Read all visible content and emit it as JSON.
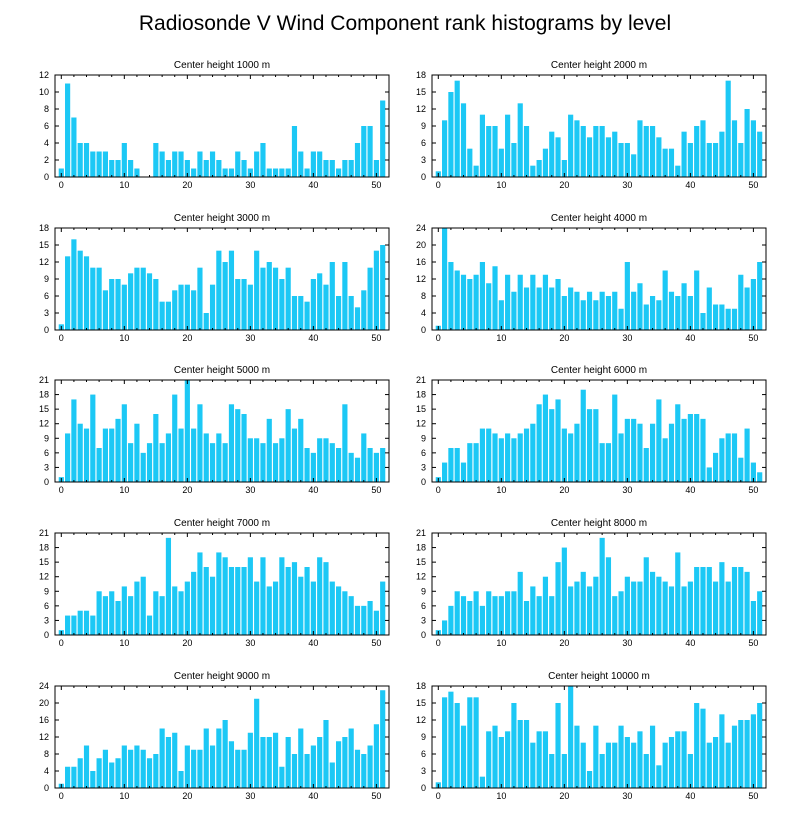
{
  "figure": {
    "title": "Radiosonde V Wind Component rank histograms by level",
    "bar_color": "#1CC8F5"
  },
  "chart_data": [
    {
      "type": "bar",
      "title": "Center height 1000 m",
      "x": [
        0,
        1,
        2,
        3,
        4,
        5,
        6,
        7,
        8,
        9,
        10,
        11,
        12,
        13,
        14,
        15,
        16,
        17,
        18,
        19,
        20,
        21,
        22,
        23,
        24,
        25,
        26,
        27,
        28,
        29,
        30,
        31,
        32,
        33,
        34,
        35,
        36,
        37,
        38,
        39,
        40,
        41,
        42,
        43,
        44,
        45,
        46,
        47,
        48,
        49,
        50,
        51
      ],
      "values": [
        1,
        11,
        7,
        4,
        4,
        3,
        3,
        3,
        2,
        2,
        4,
        2,
        1,
        0,
        0,
        4,
        3,
        2,
        3,
        3,
        2,
        1,
        3,
        2,
        3,
        2,
        1,
        1,
        3,
        2,
        1,
        3,
        4,
        1,
        1,
        1,
        1,
        6,
        3,
        1,
        3,
        3,
        2,
        2,
        1,
        2,
        2,
        4,
        6,
        6,
        2,
        9
      ],
      "xlim": [
        -1,
        52
      ],
      "ylim": [
        0,
        12
      ],
      "xticks": [
        0,
        10,
        20,
        30,
        40,
        50
      ],
      "yticks": [
        0,
        2,
        4,
        6,
        8,
        10,
        12
      ]
    },
    {
      "type": "bar",
      "title": "Center height 2000 m",
      "x": [
        0,
        1,
        2,
        3,
        4,
        5,
        6,
        7,
        8,
        9,
        10,
        11,
        12,
        13,
        14,
        15,
        16,
        17,
        18,
        19,
        20,
        21,
        22,
        23,
        24,
        25,
        26,
        27,
        28,
        29,
        30,
        31,
        32,
        33,
        34,
        35,
        36,
        37,
        38,
        39,
        40,
        41,
        42,
        43,
        44,
        45,
        46,
        47,
        48,
        49,
        50,
        51
      ],
      "values": [
        1,
        10,
        15,
        17,
        13,
        5,
        2,
        11,
        9,
        9,
        5,
        11,
        6,
        13,
        9,
        2,
        3,
        5,
        8,
        7,
        3,
        11,
        10,
        9,
        7,
        9,
        9,
        7,
        8,
        6,
        6,
        4,
        10,
        9,
        9,
        7,
        5,
        5,
        2,
        8,
        6,
        9,
        10,
        6,
        6,
        8,
        17,
        10,
        6,
        12,
        10,
        8
      ],
      "xlim": [
        -1,
        52
      ],
      "ylim": [
        0,
        18
      ],
      "xticks": [
        0,
        10,
        20,
        30,
        40,
        50
      ],
      "yticks": [
        0,
        3,
        6,
        9,
        12,
        15,
        18
      ]
    },
    {
      "type": "bar",
      "title": "Center height 3000 m",
      "x": [
        0,
        1,
        2,
        3,
        4,
        5,
        6,
        7,
        8,
        9,
        10,
        11,
        12,
        13,
        14,
        15,
        16,
        17,
        18,
        19,
        20,
        21,
        22,
        23,
        24,
        25,
        26,
        27,
        28,
        29,
        30,
        31,
        32,
        33,
        34,
        35,
        36,
        37,
        38,
        39,
        40,
        41,
        42,
        43,
        44,
        45,
        46,
        47,
        48,
        49,
        50,
        51
      ],
      "values": [
        1,
        13,
        16,
        14,
        13,
        11,
        11,
        7,
        9,
        9,
        8,
        10,
        11,
        11,
        10,
        9,
        5,
        5,
        7,
        8,
        8,
        7,
        11,
        3,
        8,
        14,
        12,
        14,
        9,
        9,
        8,
        14,
        11,
        12,
        11,
        9,
        11,
        6,
        6,
        5,
        9,
        10,
        8,
        12,
        6,
        12,
        6,
        4,
        7,
        11,
        14,
        15
      ],
      "xlim": [
        -1,
        52
      ],
      "ylim": [
        0,
        18
      ],
      "xticks": [
        0,
        10,
        20,
        30,
        40,
        50
      ],
      "yticks": [
        0,
        3,
        6,
        9,
        12,
        15,
        18
      ]
    },
    {
      "type": "bar",
      "title": "Center height 4000 m",
      "x": [
        0,
        1,
        2,
        3,
        4,
        5,
        6,
        7,
        8,
        9,
        10,
        11,
        12,
        13,
        14,
        15,
        16,
        17,
        18,
        19,
        20,
        21,
        22,
        23,
        24,
        25,
        26,
        27,
        28,
        29,
        30,
        31,
        32,
        33,
        34,
        35,
        36,
        37,
        38,
        39,
        40,
        41,
        42,
        43,
        44,
        45,
        46,
        47,
        48,
        49,
        50,
        51
      ],
      "values": [
        1,
        24,
        16,
        14,
        13,
        12,
        13,
        16,
        11,
        15,
        7,
        13,
        9,
        13,
        10,
        13,
        10,
        13,
        10,
        12,
        8,
        10,
        9,
        7,
        9,
        7,
        9,
        8,
        9,
        5,
        16,
        9,
        11,
        6,
        8,
        7,
        14,
        9,
        8,
        11,
        8,
        14,
        4,
        10,
        6,
        6,
        5,
        5,
        13,
        10,
        12,
        16
      ],
      "xlim": [
        -1,
        52
      ],
      "ylim": [
        0,
        24
      ],
      "xticks": [
        0,
        10,
        20,
        30,
        40,
        50
      ],
      "yticks": [
        0,
        4,
        8,
        12,
        16,
        20,
        24
      ]
    },
    {
      "type": "bar",
      "title": "Center height 5000 m",
      "x": [
        0,
        1,
        2,
        3,
        4,
        5,
        6,
        7,
        8,
        9,
        10,
        11,
        12,
        13,
        14,
        15,
        16,
        17,
        18,
        19,
        20,
        21,
        22,
        23,
        24,
        25,
        26,
        27,
        28,
        29,
        30,
        31,
        32,
        33,
        34,
        35,
        36,
        37,
        38,
        39,
        40,
        41,
        42,
        43,
        44,
        45,
        46,
        47,
        48,
        49,
        50,
        51
      ],
      "values": [
        1,
        10,
        17,
        12,
        11,
        18,
        7,
        11,
        11,
        13,
        16,
        8,
        12,
        6,
        8,
        14,
        8,
        10,
        18,
        11,
        21,
        11,
        16,
        10,
        8,
        10,
        8,
        16,
        15,
        14,
        9,
        9,
        8,
        13,
        8,
        9,
        15,
        11,
        13,
        7,
        6,
        9,
        9,
        8,
        7,
        16,
        6,
        5,
        10,
        7,
        6,
        7
      ],
      "xlim": [
        -1,
        52
      ],
      "ylim": [
        0,
        21
      ],
      "xticks": [
        0,
        10,
        20,
        30,
        40,
        50
      ],
      "yticks": [
        0,
        3,
        6,
        9,
        12,
        15,
        18,
        21
      ]
    },
    {
      "type": "bar",
      "title": "Center height 6000 m",
      "x": [
        0,
        1,
        2,
        3,
        4,
        5,
        6,
        7,
        8,
        9,
        10,
        11,
        12,
        13,
        14,
        15,
        16,
        17,
        18,
        19,
        20,
        21,
        22,
        23,
        24,
        25,
        26,
        27,
        28,
        29,
        30,
        31,
        32,
        33,
        34,
        35,
        36,
        37,
        38,
        39,
        40,
        41,
        42,
        43,
        44,
        45,
        46,
        47,
        48,
        49,
        50,
        51
      ],
      "values": [
        1,
        4,
        7,
        7,
        4,
        8,
        8,
        11,
        11,
        10,
        9,
        10,
        9,
        10,
        11,
        12,
        16,
        18,
        15,
        17,
        11,
        10,
        12,
        19,
        15,
        15,
        8,
        8,
        18,
        10,
        13,
        13,
        12,
        7,
        12,
        17,
        9,
        12,
        16,
        13,
        14,
        14,
        13,
        3,
        6,
        9,
        10,
        10,
        5,
        11,
        4,
        2
      ],
      "xlim": [
        -1,
        52
      ],
      "ylim": [
        0,
        21
      ],
      "xticks": [
        0,
        10,
        20,
        30,
        40,
        50
      ],
      "yticks": [
        0,
        3,
        6,
        9,
        12,
        15,
        18,
        21
      ]
    },
    {
      "type": "bar",
      "title": "Center height 7000 m",
      "x": [
        0,
        1,
        2,
        3,
        4,
        5,
        6,
        7,
        8,
        9,
        10,
        11,
        12,
        13,
        14,
        15,
        16,
        17,
        18,
        19,
        20,
        21,
        22,
        23,
        24,
        25,
        26,
        27,
        28,
        29,
        30,
        31,
        32,
        33,
        34,
        35,
        36,
        37,
        38,
        39,
        40,
        41,
        42,
        43,
        44,
        45,
        46,
        47,
        48,
        49,
        50,
        51
      ],
      "values": [
        1,
        4,
        4,
        5,
        5,
        4,
        9,
        8,
        9,
        7,
        10,
        8,
        11,
        12,
        4,
        9,
        8,
        20,
        10,
        9,
        11,
        13,
        17,
        14,
        12,
        17,
        16,
        14,
        14,
        14,
        16,
        11,
        16,
        10,
        11,
        16,
        14,
        15,
        12,
        14,
        11,
        16,
        15,
        11,
        10,
        9,
        8,
        6,
        6,
        7,
        5,
        11
      ],
      "xlim": [
        -1,
        52
      ],
      "ylim": [
        0,
        21
      ],
      "xticks": [
        0,
        10,
        20,
        30,
        40,
        50
      ],
      "yticks": [
        0,
        3,
        6,
        9,
        12,
        15,
        18,
        21
      ]
    },
    {
      "type": "bar",
      "title": "Center height 8000 m",
      "x": [
        0,
        1,
        2,
        3,
        4,
        5,
        6,
        7,
        8,
        9,
        10,
        11,
        12,
        13,
        14,
        15,
        16,
        17,
        18,
        19,
        20,
        21,
        22,
        23,
        24,
        25,
        26,
        27,
        28,
        29,
        30,
        31,
        32,
        33,
        34,
        35,
        36,
        37,
        38,
        39,
        40,
        41,
        42,
        43,
        44,
        45,
        46,
        47,
        48,
        49,
        50,
        51
      ],
      "values": [
        1,
        3,
        6,
        9,
        8,
        7,
        9,
        6,
        9,
        8,
        8,
        9,
        9,
        13,
        7,
        10,
        8,
        12,
        8,
        15,
        18,
        10,
        11,
        13,
        10,
        12,
        20,
        16,
        8,
        9,
        12,
        11,
        11,
        16,
        13,
        12,
        11,
        10,
        17,
        10,
        11,
        14,
        14,
        14,
        11,
        15,
        11,
        14,
        14,
        13,
        7,
        9
      ],
      "xlim": [
        -1,
        52
      ],
      "ylim": [
        0,
        21
      ],
      "xticks": [
        0,
        10,
        20,
        30,
        40,
        50
      ],
      "yticks": [
        0,
        3,
        6,
        9,
        12,
        15,
        18,
        21
      ]
    },
    {
      "type": "bar",
      "title": "Center height 9000 m",
      "x": [
        0,
        1,
        2,
        3,
        4,
        5,
        6,
        7,
        8,
        9,
        10,
        11,
        12,
        13,
        14,
        15,
        16,
        17,
        18,
        19,
        20,
        21,
        22,
        23,
        24,
        25,
        26,
        27,
        28,
        29,
        30,
        31,
        32,
        33,
        34,
        35,
        36,
        37,
        38,
        39,
        40,
        41,
        42,
        43,
        44,
        45,
        46,
        47,
        48,
        49,
        50,
        51
      ],
      "values": [
        1,
        5,
        5,
        7,
        10,
        4,
        7,
        9,
        6,
        7,
        10,
        9,
        10,
        9,
        7,
        8,
        14,
        12,
        13,
        4,
        10,
        9,
        9,
        14,
        10,
        14,
        16,
        11,
        9,
        9,
        13,
        21,
        12,
        12,
        13,
        5,
        12,
        8,
        14,
        8,
        10,
        12,
        16,
        6,
        11,
        12,
        14,
        9,
        8,
        10,
        15,
        23
      ],
      "xlim": [
        -1,
        52
      ],
      "ylim": [
        0,
        24
      ],
      "xticks": [
        0,
        10,
        20,
        30,
        40,
        50
      ],
      "yticks": [
        0,
        4,
        8,
        12,
        16,
        20,
        24
      ]
    },
    {
      "type": "bar",
      "title": "Center height 10000 m",
      "x": [
        0,
        1,
        2,
        3,
        4,
        5,
        6,
        7,
        8,
        9,
        10,
        11,
        12,
        13,
        14,
        15,
        16,
        17,
        18,
        19,
        20,
        21,
        22,
        23,
        24,
        25,
        26,
        27,
        28,
        29,
        30,
        31,
        32,
        33,
        34,
        35,
        36,
        37,
        38,
        39,
        40,
        41,
        42,
        43,
        44,
        45,
        46,
        47,
        48,
        49,
        50,
        51
      ],
      "values": [
        1,
        16,
        17,
        15,
        11,
        16,
        16,
        2,
        10,
        11,
        9,
        10,
        15,
        12,
        12,
        8,
        10,
        10,
        6,
        15,
        6,
        18,
        11,
        8,
        3,
        11,
        6,
        8,
        8,
        11,
        9,
        8,
        10,
        6,
        11,
        4,
        8,
        9,
        10,
        10,
        6,
        15,
        14,
        8,
        9,
        13,
        8,
        11,
        12,
        12,
        13,
        15
      ],
      "xlim": [
        -1,
        52
      ],
      "ylim": [
        0,
        18
      ],
      "xticks": [
        0,
        10,
        20,
        30,
        40,
        50
      ],
      "yticks": [
        0,
        3,
        6,
        9,
        12,
        15,
        18
      ]
    }
  ]
}
